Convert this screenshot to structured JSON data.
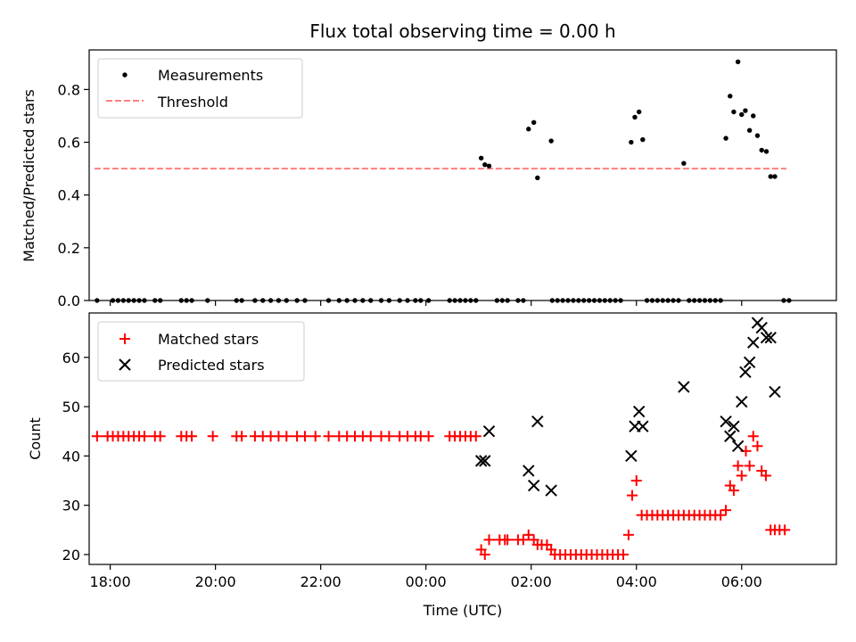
{
  "chart_data": [
    {
      "type": "scatter",
      "title": "Flux total observing time = 0.00 h",
      "ylabel": "Matched/Predicted stars",
      "xlim": [
        -6.4,
        7.8
      ],
      "ylim": [
        0,
        0.95
      ],
      "yticks": [
        "0.0",
        "0.2",
        "0.4",
        "0.6",
        "0.8"
      ],
      "legend": {
        "placement": "upper-left",
        "entries": [
          "Measurements",
          "Threshold"
        ]
      },
      "threshold": {
        "name": "Threshold",
        "value": 0.5,
        "x_range": [
          -6.3,
          6.85
        ],
        "color": "#ff7f7f"
      },
      "series": [
        {
          "name": "Measurements",
          "color": "#000000",
          "x": [
            -6.25,
            -5.95,
            -5.85,
            -5.75,
            -5.65,
            -5.55,
            -5.45,
            -5.35,
            -5.15,
            -5.05,
            -4.65,
            -4.55,
            -4.45,
            -4.15,
            -3.6,
            -3.5,
            -3.25,
            -3.1,
            -2.95,
            -2.8,
            -2.65,
            -2.45,
            -2.3,
            -1.85,
            -1.65,
            -1.5,
            -1.35,
            -1.2,
            -1.05,
            -0.85,
            -0.7,
            -0.5,
            -0.35,
            -0.2,
            -0.1,
            0.05,
            0.45,
            0.55,
            0.65,
            0.75,
            0.85,
            0.95,
            1.35,
            1.45,
            1.55,
            1.75,
            1.85,
            2.4,
            2.5,
            2.6,
            2.7,
            2.8,
            2.9,
            3.0,
            3.1,
            3.2,
            3.3,
            3.4,
            3.5,
            3.6,
            3.7,
            4.2,
            4.3,
            4.4,
            4.5,
            4.6,
            4.7,
            4.8,
            5.0,
            5.1,
            5.2,
            5.3,
            5.4,
            5.5,
            5.6,
            6.8,
            6.9
          ],
          "y": [
            0,
            0,
            0,
            0,
            0,
            0,
            0,
            0,
            0,
            0,
            0,
            0,
            0,
            0,
            0,
            0,
            0,
            0,
            0,
            0,
            0,
            0,
            0,
            0,
            0,
            0,
            0,
            0,
            0,
            0,
            0,
            0,
            0,
            0,
            0,
            0,
            0,
            0,
            0,
            0,
            0,
            0,
            0,
            0,
            0,
            0,
            0,
            0,
            0,
            0,
            0,
            0,
            0,
            0,
            0,
            0,
            0,
            0,
            0,
            0,
            0,
            0,
            0,
            0,
            0,
            0,
            0,
            0,
            0,
            0,
            0,
            0,
            0,
            0,
            0,
            0,
            0
          ]
        },
        {
          "name": "Measurements",
          "color": "#000000",
          "x": [
            1.05,
            1.12,
            1.2,
            1.95,
            2.05,
            2.12,
            2.38,
            3.9,
            3.97,
            4.05,
            4.12,
            4.9,
            5.7,
            5.78,
            5.85,
            5.93,
            6.0,
            6.07,
            6.15,
            6.22,
            6.3,
            6.38,
            6.47,
            6.55,
            6.63
          ],
          "y": [
            0.54,
            0.515,
            0.51,
            0.65,
            0.675,
            0.465,
            0.605,
            0.6,
            0.695,
            0.715,
            0.61,
            0.52,
            0.615,
            0.775,
            0.715,
            0.905,
            0.705,
            0.72,
            0.645,
            0.7,
            0.625,
            0.57,
            0.565,
            0.47,
            0.47
          ]
        }
      ]
    },
    {
      "type": "scatter",
      "xlabel": "Time (UTC)",
      "ylabel": "Count",
      "xlim": [
        -6.4,
        7.8
      ],
      "ylim": [
        18,
        69
      ],
      "yticks": [
        "20",
        "30",
        "40",
        "50",
        "60"
      ],
      "xticks": [
        "18:00",
        "20:00",
        "22:00",
        "00:00",
        "02:00",
        "04:00",
        "06:00"
      ],
      "xtick_values": [
        -6,
        -4,
        -2,
        0,
        2,
        4,
        6
      ],
      "legend": {
        "placement": "upper-left",
        "entries": [
          "Matched stars",
          "Predicted stars"
        ]
      },
      "series": [
        {
          "name": "Matched stars",
          "color": "#ff0000",
          "x": [
            -6.25,
            -6.05,
            -5.95,
            -5.85,
            -5.75,
            -5.65,
            -5.55,
            -5.45,
            -5.35,
            -5.15,
            -5.05,
            -4.65,
            -4.55,
            -4.45,
            -4.05,
            -3.6,
            -3.5,
            -3.25,
            -3.1,
            -2.95,
            -2.8,
            -2.65,
            -2.45,
            -2.3,
            -2.1,
            -1.85,
            -1.65,
            -1.5,
            -1.35,
            -1.2,
            -1.05,
            -0.85,
            -0.7,
            -0.5,
            -0.35,
            -0.2,
            -0.1,
            0.05,
            0.45,
            0.55,
            0.65,
            0.75,
            0.85,
            0.95,
            1.05,
            1.12,
            1.2,
            1.4,
            1.5,
            1.55,
            1.75,
            1.85,
            1.95,
            2.05,
            2.12,
            2.2,
            2.3,
            2.38,
            2.45,
            2.55,
            2.65,
            2.75,
            2.85,
            2.95,
            3.05,
            3.15,
            3.25,
            3.35,
            3.45,
            3.55,
            3.65,
            3.75,
            3.85,
            3.92,
            4.0,
            4.1,
            4.2,
            4.3,
            4.4,
            4.5,
            4.6,
            4.7,
            4.8,
            4.9,
            5.0,
            5.1,
            5.2,
            5.3,
            5.4,
            5.5,
            5.6,
            5.7,
            5.78,
            5.85,
            5.93,
            6.0,
            6.08,
            6.15,
            6.22,
            6.3,
            6.38,
            6.46,
            6.55,
            6.63,
            6.72,
            6.82
          ],
          "y": [
            44,
            44,
            44,
            44,
            44,
            44,
            44,
            44,
            44,
            44,
            44,
            44,
            44,
            44,
            44,
            44,
            44,
            44,
            44,
            44,
            44,
            44,
            44,
            44,
            44,
            44,
            44,
            44,
            44,
            44,
            44,
            44,
            44,
            44,
            44,
            44,
            44,
            44,
            44,
            44,
            44,
            44,
            44,
            44,
            21,
            20,
            23,
            23,
            23,
            23,
            23,
            23,
            24,
            23,
            22,
            22,
            22,
            21,
            20,
            20,
            20,
            20,
            20,
            20,
            20,
            20,
            20,
            20,
            20,
            20,
            20,
            20,
            24,
            32,
            35,
            28,
            28,
            28,
            28,
            28,
            28,
            28,
            28,
            28,
            28,
            28,
            28,
            28,
            28,
            28,
            28,
            29,
            34,
            33,
            38,
            36,
            41,
            38,
            44,
            42,
            37,
            36,
            25,
            25,
            25,
            25
          ]
        },
        {
          "name": "Predicted stars",
          "color": "#000000",
          "x": [
            1.05,
            1.12,
            1.2,
            1.95,
            2.05,
            2.12,
            2.38,
            3.9,
            3.97,
            4.05,
            4.12,
            4.9,
            5.7,
            5.78,
            5.85,
            5.93,
            6.0,
            6.07,
            6.15,
            6.22,
            6.3,
            6.38,
            6.47,
            6.55,
            6.63
          ],
          "y": [
            39,
            39,
            45,
            37,
            34,
            47,
            33,
            40,
            46,
            49,
            46,
            54,
            47,
            44,
            46,
            42,
            51,
            57,
            59,
            63,
            67,
            66,
            64,
            64,
            53
          ]
        }
      ]
    }
  ]
}
